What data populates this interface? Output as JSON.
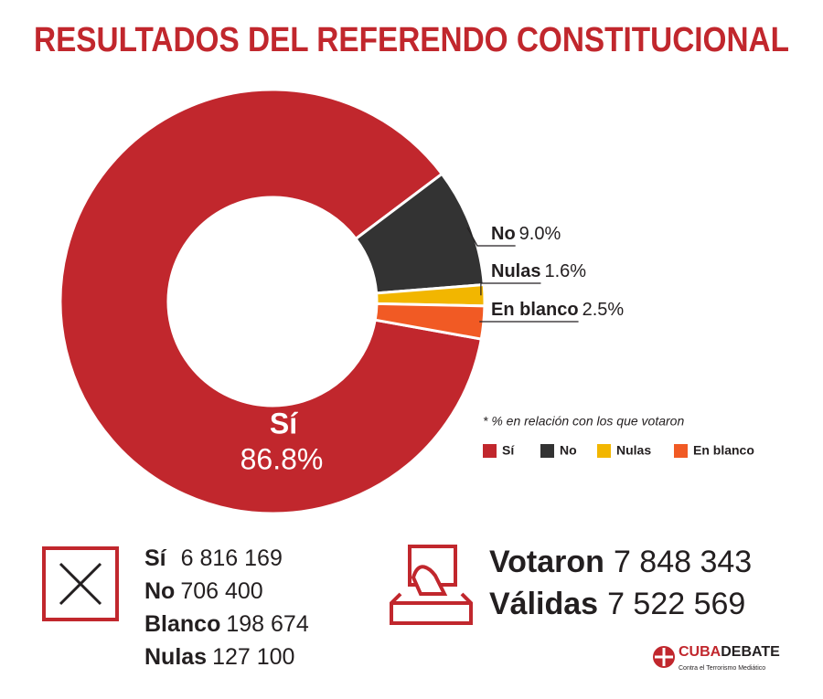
{
  "chart_data": {
    "type": "pie",
    "title": "RESULTADOS DEL REFERENDO CONSTITUCIONAL",
    "categories": [
      "Sí",
      "No",
      "Nulas",
      "En blanco"
    ],
    "values": [
      86.8,
      9.0,
      1.6,
      2.5
    ],
    "value_labels": [
      "86.8%",
      "9.0%",
      "1.6%",
      "2.5%"
    ],
    "colors": [
      "#c1272d",
      "#333333",
      "#f2b600",
      "#f15a24"
    ],
    "donut": true,
    "note": "* % en relación con los que votaron"
  },
  "summary": {
    "counts": [
      {
        "name": "Sí",
        "value": "6 816 169"
      },
      {
        "name": "No",
        "value": "706 400"
      },
      {
        "name": "Blanco",
        "value": "198 674"
      },
      {
        "name": "Nulas",
        "value": "127 100"
      }
    ],
    "voted": {
      "label": "Votaron",
      "value": "7 848 343"
    },
    "valid": {
      "label": "Válidas",
      "value": "7 522 569"
    }
  },
  "brand": {
    "part1": "CUBA",
    "part2": "DEBATE",
    "tagline": "Contra el Terrorismo Mediático"
  }
}
